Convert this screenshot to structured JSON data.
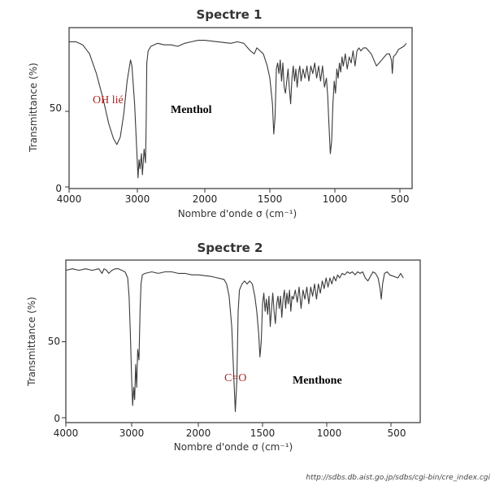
{
  "source_url": "http://sdbs.db.aist.go.jp/sdbs/cgi-bin/cre_index.cgi",
  "chart_data": [
    {
      "type": "line",
      "title": "Spectre 1",
      "xlabel": "Nombre d'onde σ (cm⁻¹)",
      "ylabel": "Transmittance (%)",
      "x_reversed": true,
      "xlim": [
        4000,
        400
      ],
      "ylim": [
        0,
        100
      ],
      "x_ticks": [
        "4000",
        "3000",
        "2000",
        "1500",
        "1000",
        "500"
      ],
      "y_ticks": [
        "0",
        "50"
      ],
      "annotations": [
        {
          "text": "OH lié",
          "color": "#b22222",
          "x": 3450,
          "y": 57
        },
        {
          "text": "Menthol",
          "color": "#000000",
          "x": 2300,
          "y": 50
        }
      ],
      "series": [
        {
          "values": [
            [
              4000,
              96
            ],
            [
              3900,
              96
            ],
            [
              3800,
              94
            ],
            [
              3700,
              88
            ],
            [
              3600,
              75
            ],
            [
              3500,
              58
            ],
            [
              3420,
              42
            ],
            [
              3350,
              32
            ],
            [
              3300,
              28
            ],
            [
              3250,
              33
            ],
            [
              3200,
              48
            ],
            [
              3150,
              70
            ],
            [
              3100,
              84
            ],
            [
              3080,
              80
            ],
            [
              3040,
              55
            ],
            [
              3010,
              25
            ],
            [
              2990,
              6
            ],
            [
              2975,
              18
            ],
            [
              2960,
              12
            ],
            [
              2940,
              22
            ],
            [
              2925,
              8
            ],
            [
              2900,
              25
            ],
            [
              2880,
              16
            ],
            [
              2870,
              40
            ],
            [
              2860,
              82
            ],
            [
              2840,
              90
            ],
            [
              2800,
              93
            ],
            [
              2700,
              95
            ],
            [
              2600,
              94
            ],
            [
              2500,
              94
            ],
            [
              2400,
              93
            ],
            [
              2300,
              95
            ],
            [
              2200,
              96
            ],
            [
              2100,
              97
            ],
            [
              2000,
              97
            ],
            [
              1900,
              96
            ],
            [
              1800,
              95
            ],
            [
              1750,
              96
            ],
            [
              1700,
              95
            ],
            [
              1650,
              90
            ],
            [
              1620,
              88
            ],
            [
              1600,
              92
            ],
            [
              1550,
              88
            ],
            [
              1520,
              80
            ],
            [
              1500,
              72
            ],
            [
              1480,
              55
            ],
            [
              1470,
              35
            ],
            [
              1460,
              46
            ],
            [
              1450,
              78
            ],
            [
              1440,
              82
            ],
            [
              1430,
              75
            ],
            [
              1420,
              84
            ],
            [
              1410,
              70
            ],
            [
              1400,
              82
            ],
            [
              1390,
              66
            ],
            [
              1380,
              62
            ],
            [
              1370,
              70
            ],
            [
              1360,
              78
            ],
            [
              1350,
              65
            ],
            [
              1340,
              55
            ],
            [
              1330,
              72
            ],
            [
              1320,
              80
            ],
            [
              1310,
              70
            ],
            [
              1300,
              78
            ],
            [
              1290,
              66
            ],
            [
              1280,
              75
            ],
            [
              1270,
              80
            ],
            [
              1260,
              70
            ],
            [
              1245,
              78
            ],
            [
              1230,
              72
            ],
            [
              1215,
              80
            ],
            [
              1200,
              70
            ],
            [
              1185,
              80
            ],
            [
              1170,
              75
            ],
            [
              1155,
              82
            ],
            [
              1140,
              72
            ],
            [
              1125,
              80
            ],
            [
              1110,
              70
            ],
            [
              1095,
              80
            ],
            [
              1080,
              66
            ],
            [
              1065,
              72
            ],
            [
              1055,
              60
            ],
            [
              1045,
              40
            ],
            [
              1035,
              22
            ],
            [
              1025,
              30
            ],
            [
              1015,
              55
            ],
            [
              1005,
              70
            ],
            [
              995,
              62
            ],
            [
              985,
              78
            ],
            [
              975,
              72
            ],
            [
              965,
              82
            ],
            [
              955,
              76
            ],
            [
              945,
              86
            ],
            [
              935,
              80
            ],
            [
              920,
              88
            ],
            [
              905,
              78
            ],
            [
              890,
              86
            ],
            [
              875,
              82
            ],
            [
              860,
              90
            ],
            [
              845,
              80
            ],
            [
              830,
              90
            ],
            [
              815,
              92
            ],
            [
              800,
              90
            ],
            [
              780,
              92
            ],
            [
              760,
              92
            ],
            [
              740,
              90
            ],
            [
              720,
              88
            ],
            [
              700,
              84
            ],
            [
              680,
              80
            ],
            [
              660,
              82
            ],
            [
              640,
              84
            ],
            [
              620,
              86
            ],
            [
              600,
              88
            ],
            [
              580,
              88
            ],
            [
              565,
              84
            ],
            [
              558,
              75
            ],
            [
              550,
              86
            ],
            [
              530,
              88
            ],
            [
              510,
              91
            ],
            [
              490,
              92
            ],
            [
              470,
              93
            ],
            [
              450,
              95
            ]
          ]
        }
      ]
    },
    {
      "type": "line",
      "title": "Spectre 2",
      "xlabel": "Nombre d'onde σ (cm⁻¹)",
      "ylabel": "Transmittance (%)",
      "x_reversed": true,
      "xlim": [
        4000,
        400
      ],
      "ylim": [
        0,
        100
      ],
      "x_ticks": [
        "4000",
        "3000",
        "2000",
        "1500",
        "1000",
        "500"
      ],
      "y_ticks": [
        "0",
        "50"
      ],
      "annotations": [
        {
          "text": "C=O",
          "color": "#b22222",
          "x": 1650,
          "y": 28
        },
        {
          "text": "Menthone",
          "color": "#000000",
          "x": 1250,
          "y": 26
        }
      ],
      "series": [
        {
          "values": [
            [
              4000,
              97
            ],
            [
              3900,
              98
            ],
            [
              3800,
              97
            ],
            [
              3700,
              98
            ],
            [
              3600,
              97
            ],
            [
              3500,
              98
            ],
            [
              3450,
              95
            ],
            [
              3420,
              98
            ],
            [
              3380,
              97
            ],
            [
              3350,
              95
            ],
            [
              3300,
              97
            ],
            [
              3250,
              98
            ],
            [
              3200,
              98
            ],
            [
              3150,
              97
            ],
            [
              3100,
              96
            ],
            [
              3060,
              92
            ],
            [
              3040,
              80
            ],
            [
              3020,
              55
            ],
            [
              3000,
              25
            ],
            [
              2985,
              8
            ],
            [
              2970,
              20
            ],
            [
              2955,
              12
            ],
            [
              2940,
              35
            ],
            [
              2925,
              20
            ],
            [
              2910,
              45
            ],
            [
              2890,
              38
            ],
            [
              2875,
              70
            ],
            [
              2860,
              88
            ],
            [
              2840,
              94
            ],
            [
              2800,
              95
            ],
            [
              2700,
              96
            ],
            [
              2600,
              95
            ],
            [
              2500,
              96
            ],
            [
              2400,
              96
            ],
            [
              2300,
              95
            ],
            [
              2200,
              95
            ],
            [
              2100,
              94
            ],
            [
              2000,
              94
            ],
            [
              1900,
              93
            ],
            [
              1850,
              92
            ],
            [
              1800,
              91
            ],
            [
              1780,
              88
            ],
            [
              1760,
              80
            ],
            [
              1740,
              60
            ],
            [
              1725,
              30
            ],
            [
              1712,
              4
            ],
            [
              1700,
              25
            ],
            [
              1690,
              70
            ],
            [
              1680,
              84
            ],
            [
              1660,
              88
            ],
            [
              1640,
              90
            ],
            [
              1620,
              88
            ],
            [
              1600,
              90
            ],
            [
              1580,
              88
            ],
            [
              1560,
              80
            ],
            [
              1545,
              70
            ],
            [
              1530,
              55
            ],
            [
              1520,
              40
            ],
            [
              1510,
              50
            ],
            [
              1500,
              75
            ],
            [
              1490,
              82
            ],
            [
              1480,
              70
            ],
            [
              1470,
              78
            ],
            [
              1460,
              68
            ],
            [
              1450,
              80
            ],
            [
              1440,
              60
            ],
            [
              1430,
              72
            ],
            [
              1420,
              82
            ],
            [
              1410,
              70
            ],
            [
              1400,
              62
            ],
            [
              1390,
              75
            ],
            [
              1380,
              80
            ],
            [
              1370,
              72
            ],
            [
              1360,
              80
            ],
            [
              1350,
              66
            ],
            [
              1340,
              78
            ],
            [
              1330,
              84
            ],
            [
              1320,
              72
            ],
            [
              1310,
              82
            ],
            [
              1300,
              75
            ],
            [
              1290,
              84
            ],
            [
              1280,
              70
            ],
            [
              1270,
              80
            ],
            [
              1260,
              78
            ],
            [
              1245,
              84
            ],
            [
              1230,
              76
            ],
            [
              1215,
              86
            ],
            [
              1200,
              72
            ],
            [
              1185,
              84
            ],
            [
              1170,
              78
            ],
            [
              1155,
              86
            ],
            [
              1140,
              75
            ],
            [
              1125,
              86
            ],
            [
              1110,
              80
            ],
            [
              1095,
              88
            ],
            [
              1080,
              78
            ],
            [
              1065,
              88
            ],
            [
              1050,
              82
            ],
            [
              1035,
              90
            ],
            [
              1020,
              85
            ],
            [
              1005,
              92
            ],
            [
              990,
              86
            ],
            [
              975,
              92
            ],
            [
              960,
              88
            ],
            [
              945,
              93
            ],
            [
              930,
              90
            ],
            [
              915,
              94
            ],
            [
              900,
              92
            ],
            [
              880,
              95
            ],
            [
              860,
              94
            ],
            [
              840,
              96
            ],
            [
              820,
              95
            ],
            [
              800,
              96
            ],
            [
              780,
              94
            ],
            [
              760,
              96
            ],
            [
              740,
              95
            ],
            [
              720,
              96
            ],
            [
              700,
              92
            ],
            [
              680,
              90
            ],
            [
              660,
              93
            ],
            [
              640,
              96
            ],
            [
              620,
              95
            ],
            [
              600,
              92
            ],
            [
              585,
              85
            ],
            [
              575,
              78
            ],
            [
              565,
              88
            ],
            [
              550,
              95
            ],
            [
              530,
              96
            ],
            [
              510,
              94
            ],
            [
              490,
              92
            ],
            [
              470,
              95
            ],
            [
              450,
              92
            ]
          ]
        }
      ]
    }
  ]
}
